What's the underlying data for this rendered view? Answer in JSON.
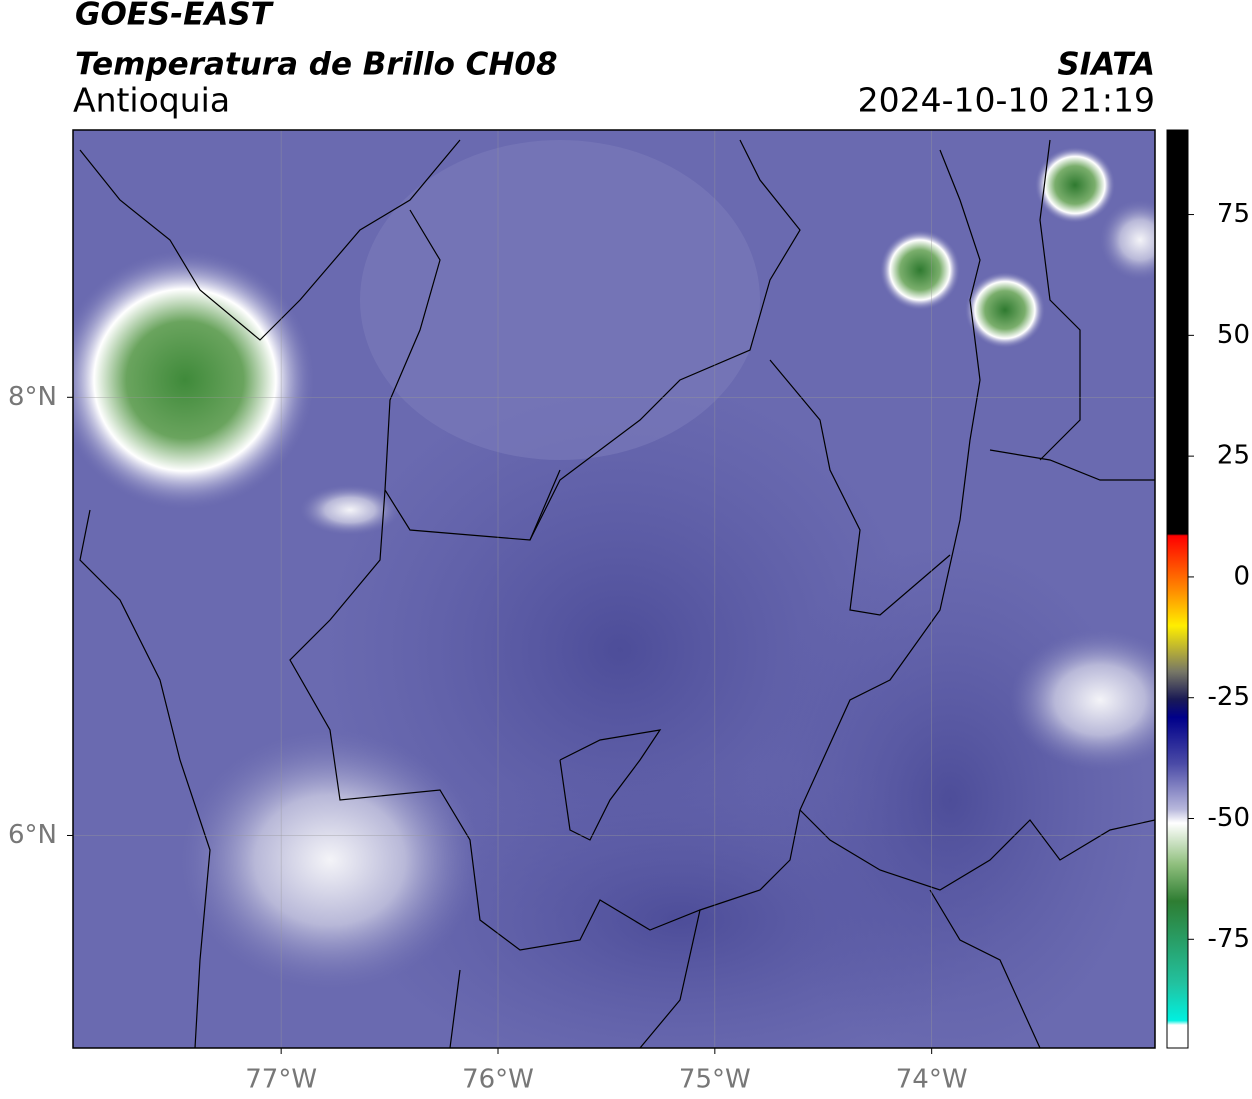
{
  "header": {
    "title": "GOES-EAST",
    "subtitle": "Temperatura de Brillo CH08",
    "region": "Antioquia",
    "source": "SIATA",
    "datetime": "2024-10-10 21:19"
  },
  "map": {
    "lon_lim": [
      -77.96,
      -72.97
    ],
    "lat_lim": [
      5.03,
      9.22
    ],
    "grid": true,
    "lon_ticks": [
      {
        "value": -77,
        "label": "77°W"
      },
      {
        "value": -76,
        "label": "76°W"
      },
      {
        "value": -75,
        "label": "75°W"
      },
      {
        "value": -74,
        "label": "74°W"
      }
    ],
    "lat_ticks": [
      {
        "value": 8,
        "label": "8°N"
      },
      {
        "value": 6,
        "label": "6°N"
      }
    ]
  },
  "colorbar": {
    "lim": [
      -97.5,
      92.5
    ],
    "ticks": [
      75,
      50,
      25,
      0,
      -25,
      -50,
      -75
    ]
  }
}
